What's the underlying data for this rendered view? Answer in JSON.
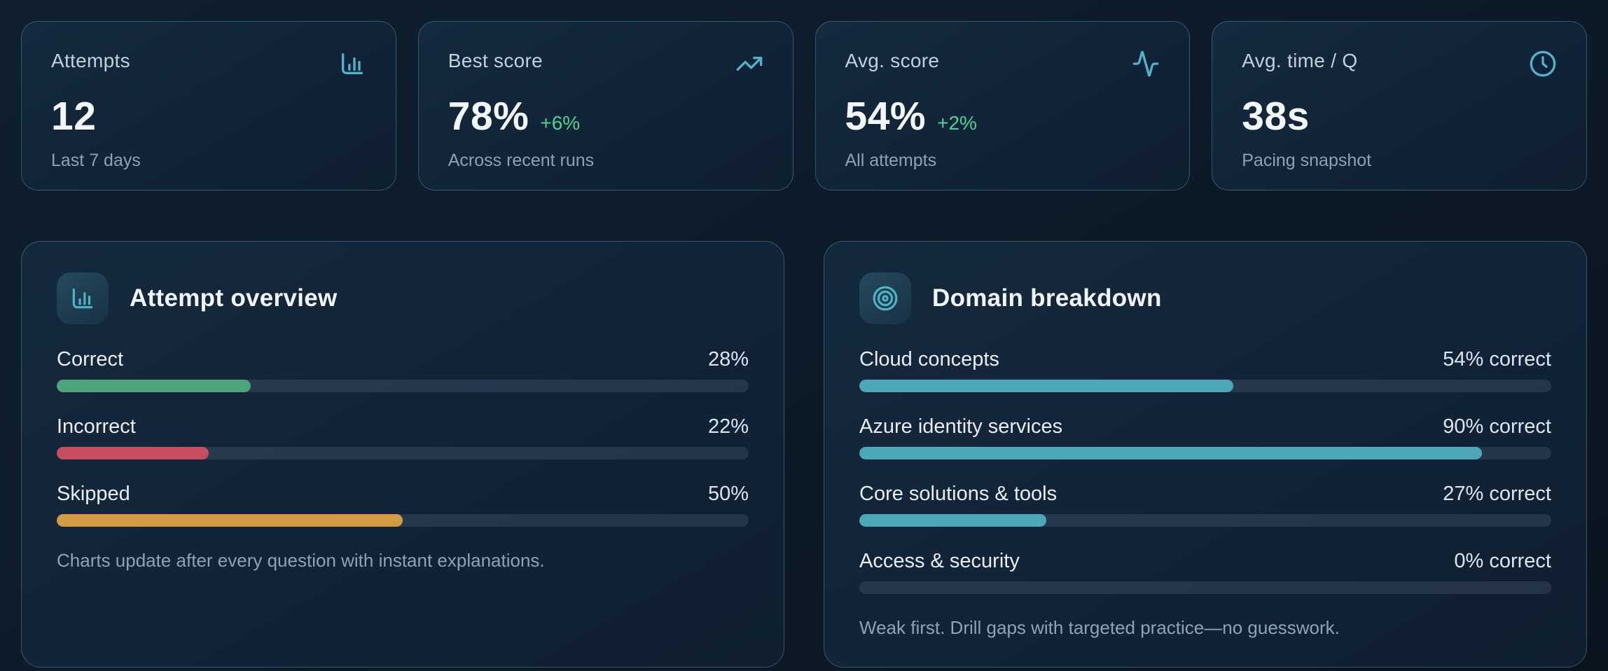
{
  "theme": {
    "accent_teal": "#4fb3c9",
    "positive_green": "#4ed392",
    "bar_green": "#4ca47a",
    "bar_red": "#c64d62",
    "bar_orange": "#d49a41",
    "bar_teal": "#4da7b8"
  },
  "stat_cards": [
    {
      "label": "Attempts",
      "value": "12",
      "delta": "",
      "sub": "Last 7 days",
      "icon": "bar-chart-icon"
    },
    {
      "label": "Best score",
      "value": "78%",
      "delta": "+6%",
      "sub": "Across recent runs",
      "icon": "trending-up-icon"
    },
    {
      "label": "Avg. score",
      "value": "54%",
      "delta": "+2%",
      "sub": "All attempts",
      "icon": "activity-icon"
    },
    {
      "label": "Avg. time / Q",
      "value": "38s",
      "delta": "",
      "sub": "Pacing snapshot",
      "icon": "clock-icon"
    }
  ],
  "attempt_overview": {
    "title": "Attempt overview",
    "icon": "bar-chart-icon",
    "rows": [
      {
        "label": "Correct",
        "value": "28%",
        "percent": 28
      },
      {
        "label": "Incorrect",
        "value": "22%",
        "percent": 22
      },
      {
        "label": "Skipped",
        "value": "50%",
        "percent": 50
      }
    ],
    "footer": "Charts update after every question with instant explanations."
  },
  "domain_breakdown": {
    "title": "Domain breakdown",
    "icon": "target-icon",
    "rows": [
      {
        "label": "Cloud concepts",
        "value": "54% correct",
        "percent": 54
      },
      {
        "label": "Azure identity services",
        "value": "90% correct",
        "percent": 90
      },
      {
        "label": "Core solutions & tools",
        "value": "27% correct",
        "percent": 27
      },
      {
        "label": "Access & security",
        "value": "0% correct",
        "percent": 0
      }
    ],
    "footer": "Weak first. Drill gaps with targeted practice—no guesswork."
  }
}
